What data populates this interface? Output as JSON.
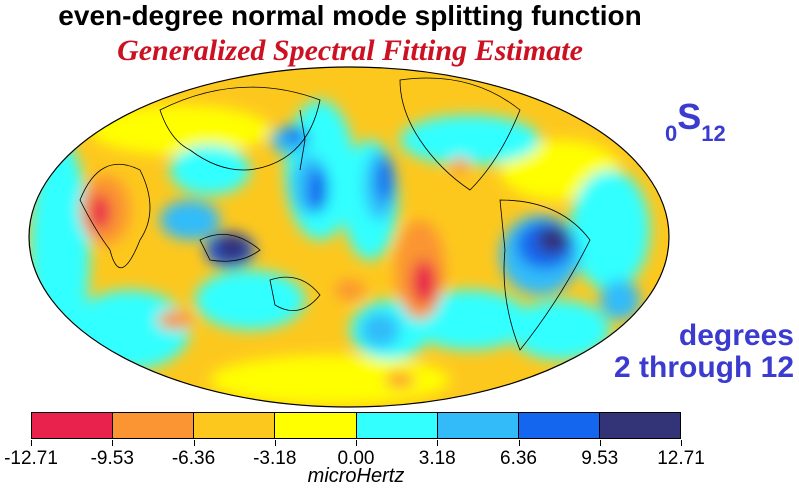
{
  "header": {
    "title": "even-degree normal mode splitting function",
    "subtitle": "Generalized Spectral Fitting Estimate"
  },
  "mode": {
    "n": "0",
    "symbol": "S",
    "l": "12"
  },
  "degrees": {
    "line1": "degrees",
    "line2": "2 through 12"
  },
  "colorbar": {
    "colors": [
      "#e8224c",
      "#fb9433",
      "#fdc81e",
      "#ffff00",
      "#33ffff",
      "#33bbf9",
      "#1566ee",
      "#333377"
    ],
    "ticks": [
      "-12.71",
      "-9.53",
      "-6.36",
      "-3.18",
      "0.00",
      "3.18",
      "6.36",
      "9.53",
      "12.71"
    ],
    "unit": "microHertz"
  },
  "map": {
    "projection": "Mollweide",
    "background_value_color": "#fdc81e",
    "anomalies": [
      {
        "lon": -170,
        "lat": 20,
        "rx": 14,
        "ry": 30,
        "color": "#e8224c"
      },
      {
        "lon": 130,
        "lat": -5,
        "rx": 18,
        "ry": 15,
        "color": "#333377"
      },
      {
        "lon": -55,
        "lat": 5,
        "rx": 14,
        "ry": 14,
        "color": "#333377"
      },
      {
        "lon": 175,
        "lat": -25,
        "rx": 10,
        "ry": 20,
        "color": "#e8224c"
      }
    ]
  }
}
